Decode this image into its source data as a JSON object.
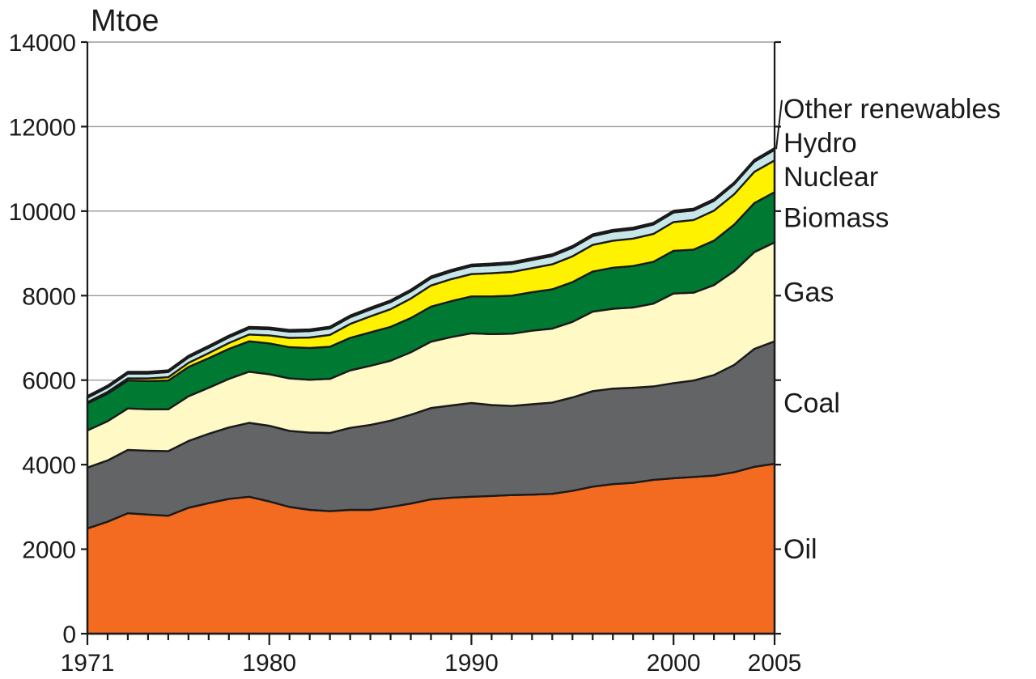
{
  "chart_data": {
    "type": "area",
    "ylabel": "Mtoe",
    "ylim": [
      0,
      14000
    ],
    "yticks": [
      0,
      2000,
      4000,
      6000,
      8000,
      10000,
      12000,
      14000
    ],
    "xlim": [
      1971,
      2005
    ],
    "xticks": [
      1971,
      1980,
      1990,
      2000,
      2005
    ],
    "grid": true,
    "legend": "right",
    "x": [
      1971,
      1972,
      1973,
      1974,
      1975,
      1976,
      1977,
      1978,
      1979,
      1980,
      1981,
      1982,
      1983,
      1984,
      1985,
      1986,
      1987,
      1988,
      1989,
      1990,
      1991,
      1992,
      1993,
      1994,
      1995,
      1996,
      1997,
      1998,
      1999,
      2000,
      2001,
      2002,
      2003,
      2004,
      2005
    ],
    "series": [
      {
        "name": "Oil",
        "color": "#f26b21",
        "values": [
          2490,
          2650,
          2850,
          2820,
          2790,
          2980,
          3090,
          3190,
          3240,
          3130,
          3000,
          2930,
          2900,
          2930,
          2930,
          3000,
          3080,
          3180,
          3220,
          3240,
          3260,
          3280,
          3290,
          3310,
          3380,
          3480,
          3540,
          3570,
          3640,
          3680,
          3710,
          3740,
          3820,
          3950,
          4020
        ]
      },
      {
        "name": "Coal",
        "color": "#636466",
        "values": [
          1440,
          1450,
          1500,
          1510,
          1530,
          1580,
          1640,
          1690,
          1750,
          1790,
          1800,
          1830,
          1850,
          1940,
          2010,
          2040,
          2100,
          2160,
          2180,
          2220,
          2150,
          2110,
          2140,
          2160,
          2210,
          2260,
          2260,
          2250,
          2210,
          2250,
          2280,
          2380,
          2540,
          2790,
          2900
        ]
      },
      {
        "name": "Gas",
        "color": "#fff9c6",
        "values": [
          880,
          930,
          980,
          980,
          990,
          1060,
          1090,
          1150,
          1210,
          1220,
          1240,
          1250,
          1280,
          1360,
          1400,
          1420,
          1480,
          1570,
          1620,
          1650,
          1680,
          1710,
          1740,
          1750,
          1790,
          1880,
          1890,
          1900,
          1960,
          2120,
          2080,
          2130,
          2220,
          2290,
          2340
        ]
      },
      {
        "name": "Biomass",
        "color": "#007a33",
        "values": [
          640,
          650,
          660,
          670,
          680,
          690,
          700,
          710,
          720,
          730,
          740,
          750,
          760,
          770,
          790,
          800,
          810,
          830,
          850,
          870,
          890,
          900,
          910,
          930,
          940,
          950,
          970,
          980,
          990,
          1010,
          1020,
          1050,
          1100,
          1160,
          1190
        ]
      },
      {
        "name": "Nuclear",
        "color": "#fff200",
        "values": [
          30,
          40,
          50,
          60,
          80,
          100,
          120,
          140,
          160,
          190,
          220,
          250,
          280,
          330,
          380,
          420,
          460,
          500,
          520,
          530,
          550,
          560,
          570,
          590,
          610,
          630,
          640,
          650,
          660,
          680,
          700,
          710,
          720,
          740,
          750
        ]
      },
      {
        "name": "Hydro",
        "color": "#c6e6ea",
        "values": [
          105,
          110,
          115,
          118,
          122,
          126,
          130,
          134,
          140,
          145,
          148,
          150,
          154,
          158,
          162,
          166,
          170,
          174,
          178,
          184,
          188,
          190,
          194,
          198,
          204,
          210,
          214,
          218,
          222,
          226,
          228,
          232,
          236,
          242,
          250
        ]
      },
      {
        "name": "Other renewables",
        "color": "#1a1a1a",
        "values": [
          40,
          40,
          40,
          40,
          40,
          40,
          40,
          40,
          40,
          40,
          40,
          40,
          40,
          40,
          40,
          40,
          40,
          40,
          40,
          40,
          40,
          40,
          40,
          40,
          40,
          40,
          40,
          40,
          40,
          40,
          40,
          40,
          40,
          40,
          40
        ]
      }
    ]
  }
}
